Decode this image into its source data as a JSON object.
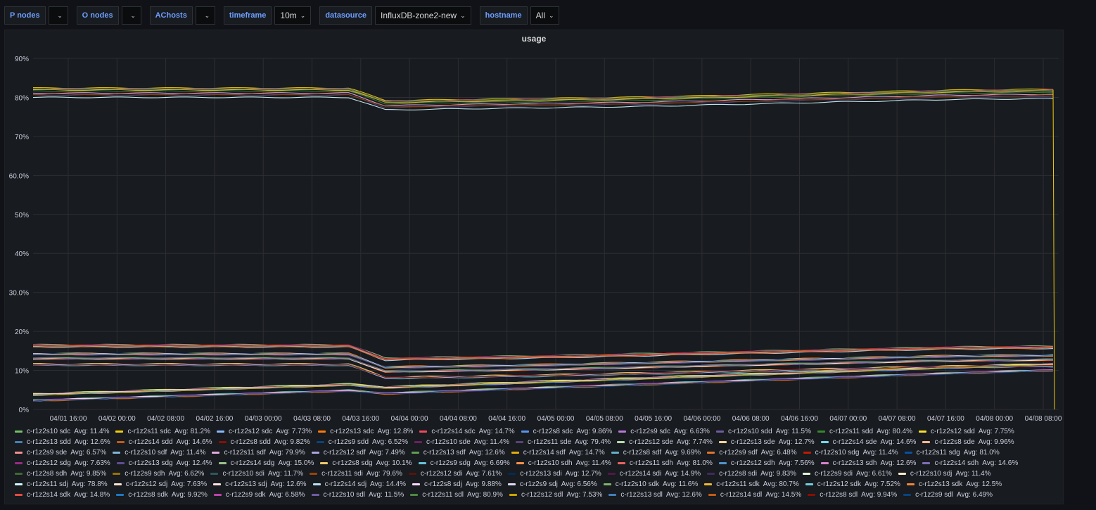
{
  "toolbar": {
    "vars": [
      {
        "label": "P nodes",
        "value": ""
      },
      {
        "label": "O nodes",
        "value": ""
      },
      {
        "label": "AChosts",
        "value": ""
      },
      {
        "label": "timeframe",
        "value": "10m"
      },
      {
        "label": "datasource",
        "value": "InfluxDB-zone2-new"
      },
      {
        "label": "hostname",
        "value": "All"
      }
    ]
  },
  "panel": {
    "title": "usage"
  },
  "chart_data": {
    "type": "line",
    "title": "usage",
    "ylim": [
      0,
      90
    ],
    "y_ticks": [
      "0%",
      "10%",
      "20%",
      "30.0%",
      "40%",
      "50%",
      "60.0%",
      "70%",
      "80%",
      "90%"
    ],
    "x_ticks": [
      "04/01 16:00",
      "04/02 00:00",
      "04/02 08:00",
      "04/02 16:00",
      "04/03 00:00",
      "04/03 08:00",
      "04/03 16:00",
      "04/04 00:00",
      "04/04 08:00",
      "04/04 16:00",
      "04/05 00:00",
      "04/05 08:00",
      "04/05 16:00",
      "04/06 00:00",
      "04/06 08:00",
      "04/06 16:00",
      "04/07 00:00",
      "04/07 08:00",
      "04/07 16:00",
      "04/08 00:00",
      "04/08 08:00"
    ],
    "grid": true,
    "legend_position": "bottom",
    "series": [
      {
        "name": "c-r1z2s10 sdc",
        "avg": "Avg: 11.4%",
        "color": "#73bf69"
      },
      {
        "name": "c-r1z2s11 sdc",
        "avg": "Avg: 81.2%",
        "color": "#f2cc0c"
      },
      {
        "name": "c-r1z2s12 sdc",
        "avg": "Avg: 7.73%",
        "color": "#8ab8ff"
      },
      {
        "name": "c-r1z2s13 sdc",
        "avg": "Avg: 12.8%",
        "color": "#ff780a"
      },
      {
        "name": "c-r1z2s14 sdc",
        "avg": "Avg: 14.7%",
        "color": "#f2495c"
      },
      {
        "name": "c-r1z2s8 sdc",
        "avg": "Avg: 9.86%",
        "color": "#5794f2"
      },
      {
        "name": "c-r1z2s9 sdc",
        "avg": "Avg: 6.63%",
        "color": "#b877d9"
      },
      {
        "name": "c-r1z2s10 sdd",
        "avg": "Avg: 11.5%",
        "color": "#705da0"
      },
      {
        "name": "c-r1z2s11 sdd",
        "avg": "Avg: 80.4%",
        "color": "#37872d"
      },
      {
        "name": "c-r1z2s12 sdd",
        "avg": "Avg: 7.75%",
        "color": "#fade2a"
      },
      {
        "name": "c-r1z2s13 sdd",
        "avg": "Avg: 12.6%",
        "color": "#447ebc"
      },
      {
        "name": "c-r1z2s14 sdd",
        "avg": "Avg: 14.6%",
        "color": "#c15c17"
      },
      {
        "name": "c-r1z2s8 sdd",
        "avg": "Avg: 9.82%",
        "color": "#890f02"
      },
      {
        "name": "c-r1z2s9 sdd",
        "avg": "Avg: 6.52%",
        "color": "#0a437c"
      },
      {
        "name": "c-r1z2s10 sde",
        "avg": "Avg: 11.4%",
        "color": "#6d1f62"
      },
      {
        "name": "c-r1z2s11 sde",
        "avg": "Avg: 79.4%",
        "color": "#584477"
      },
      {
        "name": "c-r1z2s12 sde",
        "avg": "Avg: 7.74%",
        "color": "#b7dbab"
      },
      {
        "name": "c-r1z2s13 sde",
        "avg": "Avg: 12.7%",
        "color": "#f4d598"
      },
      {
        "name": "c-r1z2s14 sde",
        "avg": "Avg: 14.6%",
        "color": "#70dbed"
      },
      {
        "name": "c-r1z2s8 sde",
        "avg": "Avg: 9.96%",
        "color": "#f9ba8f"
      },
      {
        "name": "c-r1z2s9 sde",
        "avg": "Avg: 6.57%",
        "color": "#f29191"
      },
      {
        "name": "c-r1z2s10 sdf",
        "avg": "Avg: 11.4%",
        "color": "#82b5d8"
      },
      {
        "name": "c-r1z2s11 sdf",
        "avg": "Avg: 79.9%",
        "color": "#e5a8e2"
      },
      {
        "name": "c-r1z2s12 sdf",
        "avg": "Avg: 7.49%",
        "color": "#aea2e0"
      },
      {
        "name": "c-r1z2s13 sdf",
        "avg": "Avg: 12.6%",
        "color": "#629e51"
      },
      {
        "name": "c-r1z2s14 sdf",
        "avg": "Avg: 14.7%",
        "color": "#e5ac0e"
      },
      {
        "name": "c-r1z2s8 sdf",
        "avg": "Avg: 9.69%",
        "color": "#64b0c8"
      },
      {
        "name": "c-r1z2s9 sdf",
        "avg": "Avg: 6.48%",
        "color": "#e0752d"
      },
      {
        "name": "c-r1z2s10 sdg",
        "avg": "Avg: 11.4%",
        "color": "#bf1b00"
      },
      {
        "name": "c-r1z2s11 sdg",
        "avg": "Avg: 81.0%",
        "color": "#0a50a1"
      },
      {
        "name": "c-r1z2s12 sdg",
        "avg": "Avg: 7.63%",
        "color": "#962d82"
      },
      {
        "name": "c-r1z2s13 sdg",
        "avg": "Avg: 12.4%",
        "color": "#614d93"
      },
      {
        "name": "c-r1z2s14 sdg",
        "avg": "Avg: 15.0%",
        "color": "#9ac48a"
      },
      {
        "name": "c-r1z2s8 sdg",
        "avg": "Avg: 10.1%",
        "color": "#f2c96d"
      },
      {
        "name": "c-r1z2s9 sdg",
        "avg": "Avg: 6.69%",
        "color": "#65c5db"
      },
      {
        "name": "c-r1z2s10 sdh",
        "avg": "Avg: 11.4%",
        "color": "#f9934e"
      },
      {
        "name": "c-r1z2s11 sdh",
        "avg": "Avg: 81.0%",
        "color": "#ea6460"
      },
      {
        "name": "c-r1z2s12 sdh",
        "avg": "Avg: 7.56%",
        "color": "#5195ce"
      },
      {
        "name": "c-r1z2s13 sdh",
        "avg": "Avg: 12.6%",
        "color": "#d683ce"
      },
      {
        "name": "c-r1z2s14 sdh",
        "avg": "Avg: 14.6%",
        "color": "#806eb7"
      },
      {
        "name": "c-r1z2s8 sdh",
        "avg": "Avg: 9.85%",
        "color": "#3f6833"
      },
      {
        "name": "c-r1z2s9 sdh",
        "avg": "Avg: 6.62%",
        "color": "#967302"
      },
      {
        "name": "c-r1z2s10 sdi",
        "avg": "Avg: 11.7%",
        "color": "#2f575e"
      },
      {
        "name": "c-r1z2s11 sdi",
        "avg": "Avg: 79.6%",
        "color": "#99440a"
      },
      {
        "name": "c-r1z2s12 sdi",
        "avg": "Avg: 7.61%",
        "color": "#58140c"
      },
      {
        "name": "c-r1z2s13 sdi",
        "avg": "Avg: 12.7%",
        "color": "#052b51"
      },
      {
        "name": "c-r1z2s14 sdi",
        "avg": "Avg: 14.9%",
        "color": "#511749"
      },
      {
        "name": "c-r1z2s8 sdi",
        "avg": "Avg: 9.83%",
        "color": "#3f2b5b"
      },
      {
        "name": "c-r1z2s9 sdi",
        "avg": "Avg: 6.61%",
        "color": "#e0f9d7"
      },
      {
        "name": "c-r1z2s10 sdj",
        "avg": "Avg: 11.4%",
        "color": "#fcEACA"
      },
      {
        "name": "c-r1z2s11 sdj",
        "avg": "Avg: 78.8%",
        "color": "#cffaff"
      },
      {
        "name": "c-r1z2s12 sdj",
        "avg": "Avg: 7.63%",
        "color": "#f9e2d2"
      },
      {
        "name": "c-r1z2s13 sdj",
        "avg": "Avg: 12.6%",
        "color": "#fce2de"
      },
      {
        "name": "c-r1z2s14 sdj",
        "avg": "Avg: 14.4%",
        "color": "#badff4"
      },
      {
        "name": "c-r1z2s8 sdj",
        "avg": "Avg: 9.88%",
        "color": "#f9d9f9"
      },
      {
        "name": "c-r1z2s9 sdj",
        "avg": "Avg: 6.56%",
        "color": "#dedaf7"
      },
      {
        "name": "c-r1z2s10 sdk",
        "avg": "Avg: 11.6%",
        "color": "#7eb26d"
      },
      {
        "name": "c-r1z2s11 sdk",
        "avg": "Avg: 80.7%",
        "color": "#eab839"
      },
      {
        "name": "c-r1z2s12 sdk",
        "avg": "Avg: 7.52%",
        "color": "#6ed0e0"
      },
      {
        "name": "c-r1z2s13 sdk",
        "avg": "Avg: 12.5%",
        "color": "#ef843c"
      },
      {
        "name": "c-r1z2s14 sdk",
        "avg": "Avg: 14.8%",
        "color": "#e24d42"
      },
      {
        "name": "c-r1z2s8 sdk",
        "avg": "Avg: 9.92%",
        "color": "#1f78c1"
      },
      {
        "name": "c-r1z2s9 sdk",
        "avg": "Avg: 6.58%",
        "color": "#ba43a9"
      },
      {
        "name": "c-r1z2s10 sdl",
        "avg": "Avg: 11.5%",
        "color": "#705da0"
      },
      {
        "name": "c-r1z2s11 sdl",
        "avg": "Avg: 80.9%",
        "color": "#508642"
      },
      {
        "name": "c-r1z2s12 sdl",
        "avg": "Avg: 7.53%",
        "color": "#cca300"
      },
      {
        "name": "c-r1z2s13 sdl",
        "avg": "Avg: 12.6%",
        "color": "#447ebc"
      },
      {
        "name": "c-r1z2s14 sdl",
        "avg": "Avg: 14.5%",
        "color": "#c15c17"
      },
      {
        "name": "c-r1z2s8 sdl",
        "avg": "Avg: 9.94%",
        "color": "#890f02"
      },
      {
        "name": "c-r1z2s9 sdl",
        "avg": "Avg: 6.49%",
        "color": "#0a437c"
      }
    ]
  }
}
